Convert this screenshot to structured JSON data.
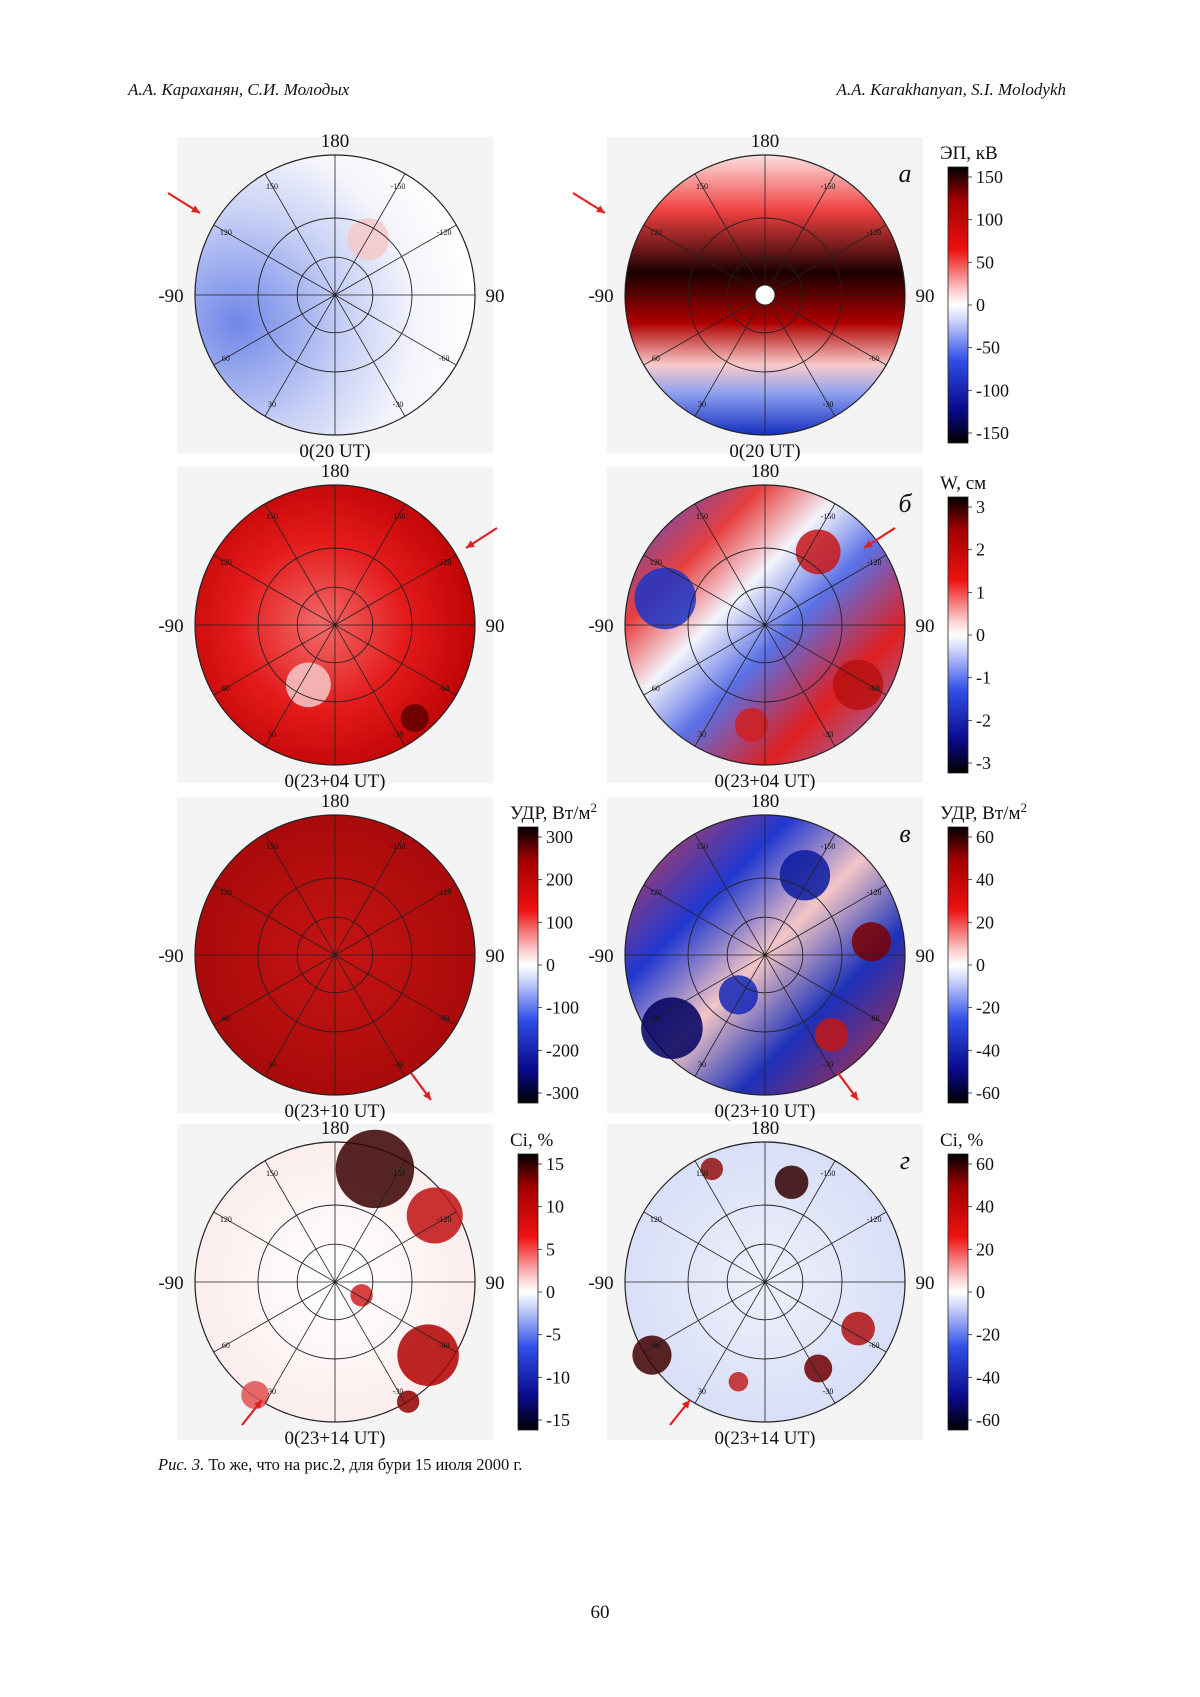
{
  "header": {
    "left": "А.А. Караханян, С.И. Молодых",
    "right": "A.A. Karakhanyan, S.I. Molodykh"
  },
  "figure": {
    "rows": [
      {
        "letter": "а",
        "panels": [
          {
            "top": "180",
            "left": "-90",
            "right": "90",
            "bottom": "0(20 UT)",
            "field": "weak-blue-west"
          },
          {
            "top": "180",
            "left": "-90",
            "right": "90",
            "bottom": "0(20 UT)",
            "field": "strong-red-band"
          }
        ],
        "colorbar": {
          "title": "ЭП, кВ",
          "ticks": [
            "150",
            "100",
            "50",
            "0",
            "-50",
            "-100",
            "-150"
          ]
        }
      },
      {
        "letter": "б",
        "panels": [
          {
            "top": "180",
            "left": "-90",
            "right": "90",
            "bottom": "0(23+04 UT)",
            "field": "red-uniform"
          },
          {
            "top": "180",
            "left": "-90",
            "right": "90",
            "bottom": "0(23+04 UT)",
            "field": "red-blue-sectors"
          }
        ],
        "colorbar": {
          "title": "W, см",
          "ticks": [
            "3",
            "2",
            "1",
            "0",
            "-1",
            "-2",
            "-3"
          ]
        }
      },
      {
        "letter": "в",
        "panels": [
          {
            "top": "180",
            "left": "-90",
            "right": "90",
            "bottom": "0(23+10 UT)",
            "field": "dark-red"
          },
          {
            "top": "180",
            "left": "-90",
            "right": "90",
            "bottom": "0(23+10 UT)",
            "field": "red-blue-noisy"
          }
        ],
        "colorbars": [
          {
            "title": "УДР, Вт/м",
            "sup": "2",
            "ticks": [
              "300",
              "200",
              "100",
              "0",
              "-100",
              "-200",
              "-300"
            ]
          },
          {
            "title": "УДР, Вт/м",
            "sup": "2",
            "ticks": [
              "60",
              "40",
              "20",
              "0",
              "-20",
              "-40",
              "-60"
            ]
          }
        ]
      },
      {
        "letter": "г",
        "panels": [
          {
            "top": "180",
            "left": "-90",
            "right": "90",
            "bottom": "0(23+14 UT)",
            "field": "white-red-spots"
          },
          {
            "top": "180",
            "left": "-90",
            "right": "90",
            "bottom": "0(23+14 UT)",
            "field": "pale-blue-red-spots"
          }
        ],
        "colorbars": [
          {
            "title": "Ci, %",
            "ticks": [
              "15",
              "10",
              "5",
              "0",
              "-5",
              "-10",
              "-15"
            ]
          },
          {
            "title": "Ci, %",
            "ticks": [
              "60",
              "40",
              "20",
              "0",
              "-20",
              "-40",
              "-60"
            ]
          }
        ]
      }
    ],
    "map_tick_labels": [
      "-150",
      "150",
      "-120",
      "120",
      "-60",
      "60",
      "-30",
      "30"
    ],
    "colors": {
      "red": "#d7191c",
      "white": "#ffffff",
      "blue": "#1f3fd6",
      "dark": "#0a0000"
    }
  },
  "caption": {
    "label": "Рис. 3.",
    "text": " То же, что на рис.2, для бури 15 июля 2000 г."
  },
  "page_number": "60"
}
